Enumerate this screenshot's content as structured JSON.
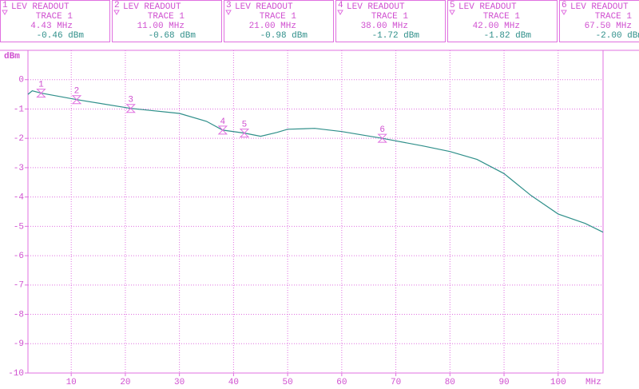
{
  "chart_data": {
    "type": "line",
    "readout_title": "LEV READOUT",
    "trace_label": "TRACE 1",
    "y_label": "dBm",
    "x_label": "MHz",
    "xlim": [
      2,
      108.3
    ],
    "ylim": [
      -10,
      1
    ],
    "xticks": [
      10,
      20,
      30,
      40,
      50,
      60,
      70,
      80,
      90,
      100
    ],
    "yticks": [
      0,
      -1,
      -2,
      -3,
      -4,
      -5,
      -6,
      -7,
      -8,
      -9,
      -10
    ],
    "grid": true,
    "series": [
      {
        "name": "TRACE 1",
        "color": "#2f8f8a",
        "x": [
          2,
          2.8,
          4.43,
          11,
          21,
          30,
          35,
          38,
          42,
          45,
          48,
          50,
          55,
          60,
          67.5,
          75,
          80,
          85,
          90,
          95,
          100,
          105,
          108.3
        ],
        "values": [
          -0.5,
          -0.38,
          -0.46,
          -0.68,
          -0.98,
          -1.15,
          -1.42,
          -1.72,
          -1.82,
          -1.93,
          -1.8,
          -1.69,
          -1.66,
          -1.77,
          -2.0,
          -2.26,
          -2.45,
          -2.72,
          -3.2,
          -3.95,
          -4.58,
          -4.9,
          -5.2
        ]
      }
    ],
    "markers": [
      {
        "label": "1",
        "x": 4.43,
        "x_label": "4.43 MHz",
        "value": -0.46,
        "value_label": "-0.46 dBm"
      },
      {
        "label": "2",
        "x": 11,
        "x_label": "11.00 MHz",
        "value": -0.68,
        "value_label": "-0.68 dBm"
      },
      {
        "label": "3",
        "x": 21,
        "x_label": "21.00 MHz",
        "value": -0.98,
        "value_label": "-0.98 dBm"
      },
      {
        "label": "4",
        "x": 38,
        "x_label": "38.00 MHz",
        "value": -1.72,
        "value_label": "-1.72 dBm"
      },
      {
        "label": "5",
        "x": 42,
        "x_label": "42.00 MHz",
        "value": -1.82,
        "value_label": "-1.82 dBm"
      },
      {
        "label": "6",
        "x": 67.5,
        "x_label": "67.50 MHz",
        "value": -2.0,
        "value_label": "-2.00 dBm"
      }
    ]
  }
}
